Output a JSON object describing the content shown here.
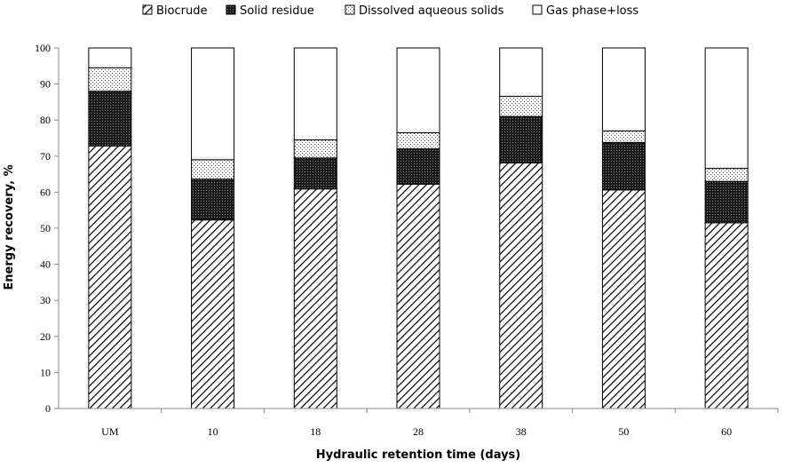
{
  "chart_data": {
    "type": "bar",
    "stacked": true,
    "title": "",
    "xlabel": "Hydraulic retention time (days)",
    "ylabel": "Energy recovery, %",
    "ylim": [
      0,
      100
    ],
    "yticks": [
      0,
      10,
      20,
      30,
      40,
      50,
      60,
      70,
      80,
      90,
      100
    ],
    "categories": [
      "UM",
      "10",
      "18",
      "28",
      "38",
      "50",
      "60"
    ],
    "legend_position": "top",
    "grid": false,
    "series": [
      {
        "name": "Biocrude",
        "pattern": "diagonal-hatch",
        "values": [
          72.8,
          52.3,
          60.9,
          62.2,
          68.1,
          60.6,
          51.5
        ]
      },
      {
        "name": "Solid residue",
        "pattern": "dense-dark-hatch",
        "values": [
          15.2,
          11.3,
          8.6,
          9.8,
          12.9,
          13.2,
          11.5
        ]
      },
      {
        "name": "Dissolved aqueous solids",
        "pattern": "light-dots",
        "values": [
          6.5,
          5.4,
          5.0,
          4.5,
          5.6,
          3.2,
          3.6
        ]
      },
      {
        "name": "Gas phase+loss",
        "pattern": "white",
        "values": [
          5.5,
          31.0,
          25.5,
          23.5,
          13.4,
          23.0,
          33.4
        ]
      }
    ]
  }
}
